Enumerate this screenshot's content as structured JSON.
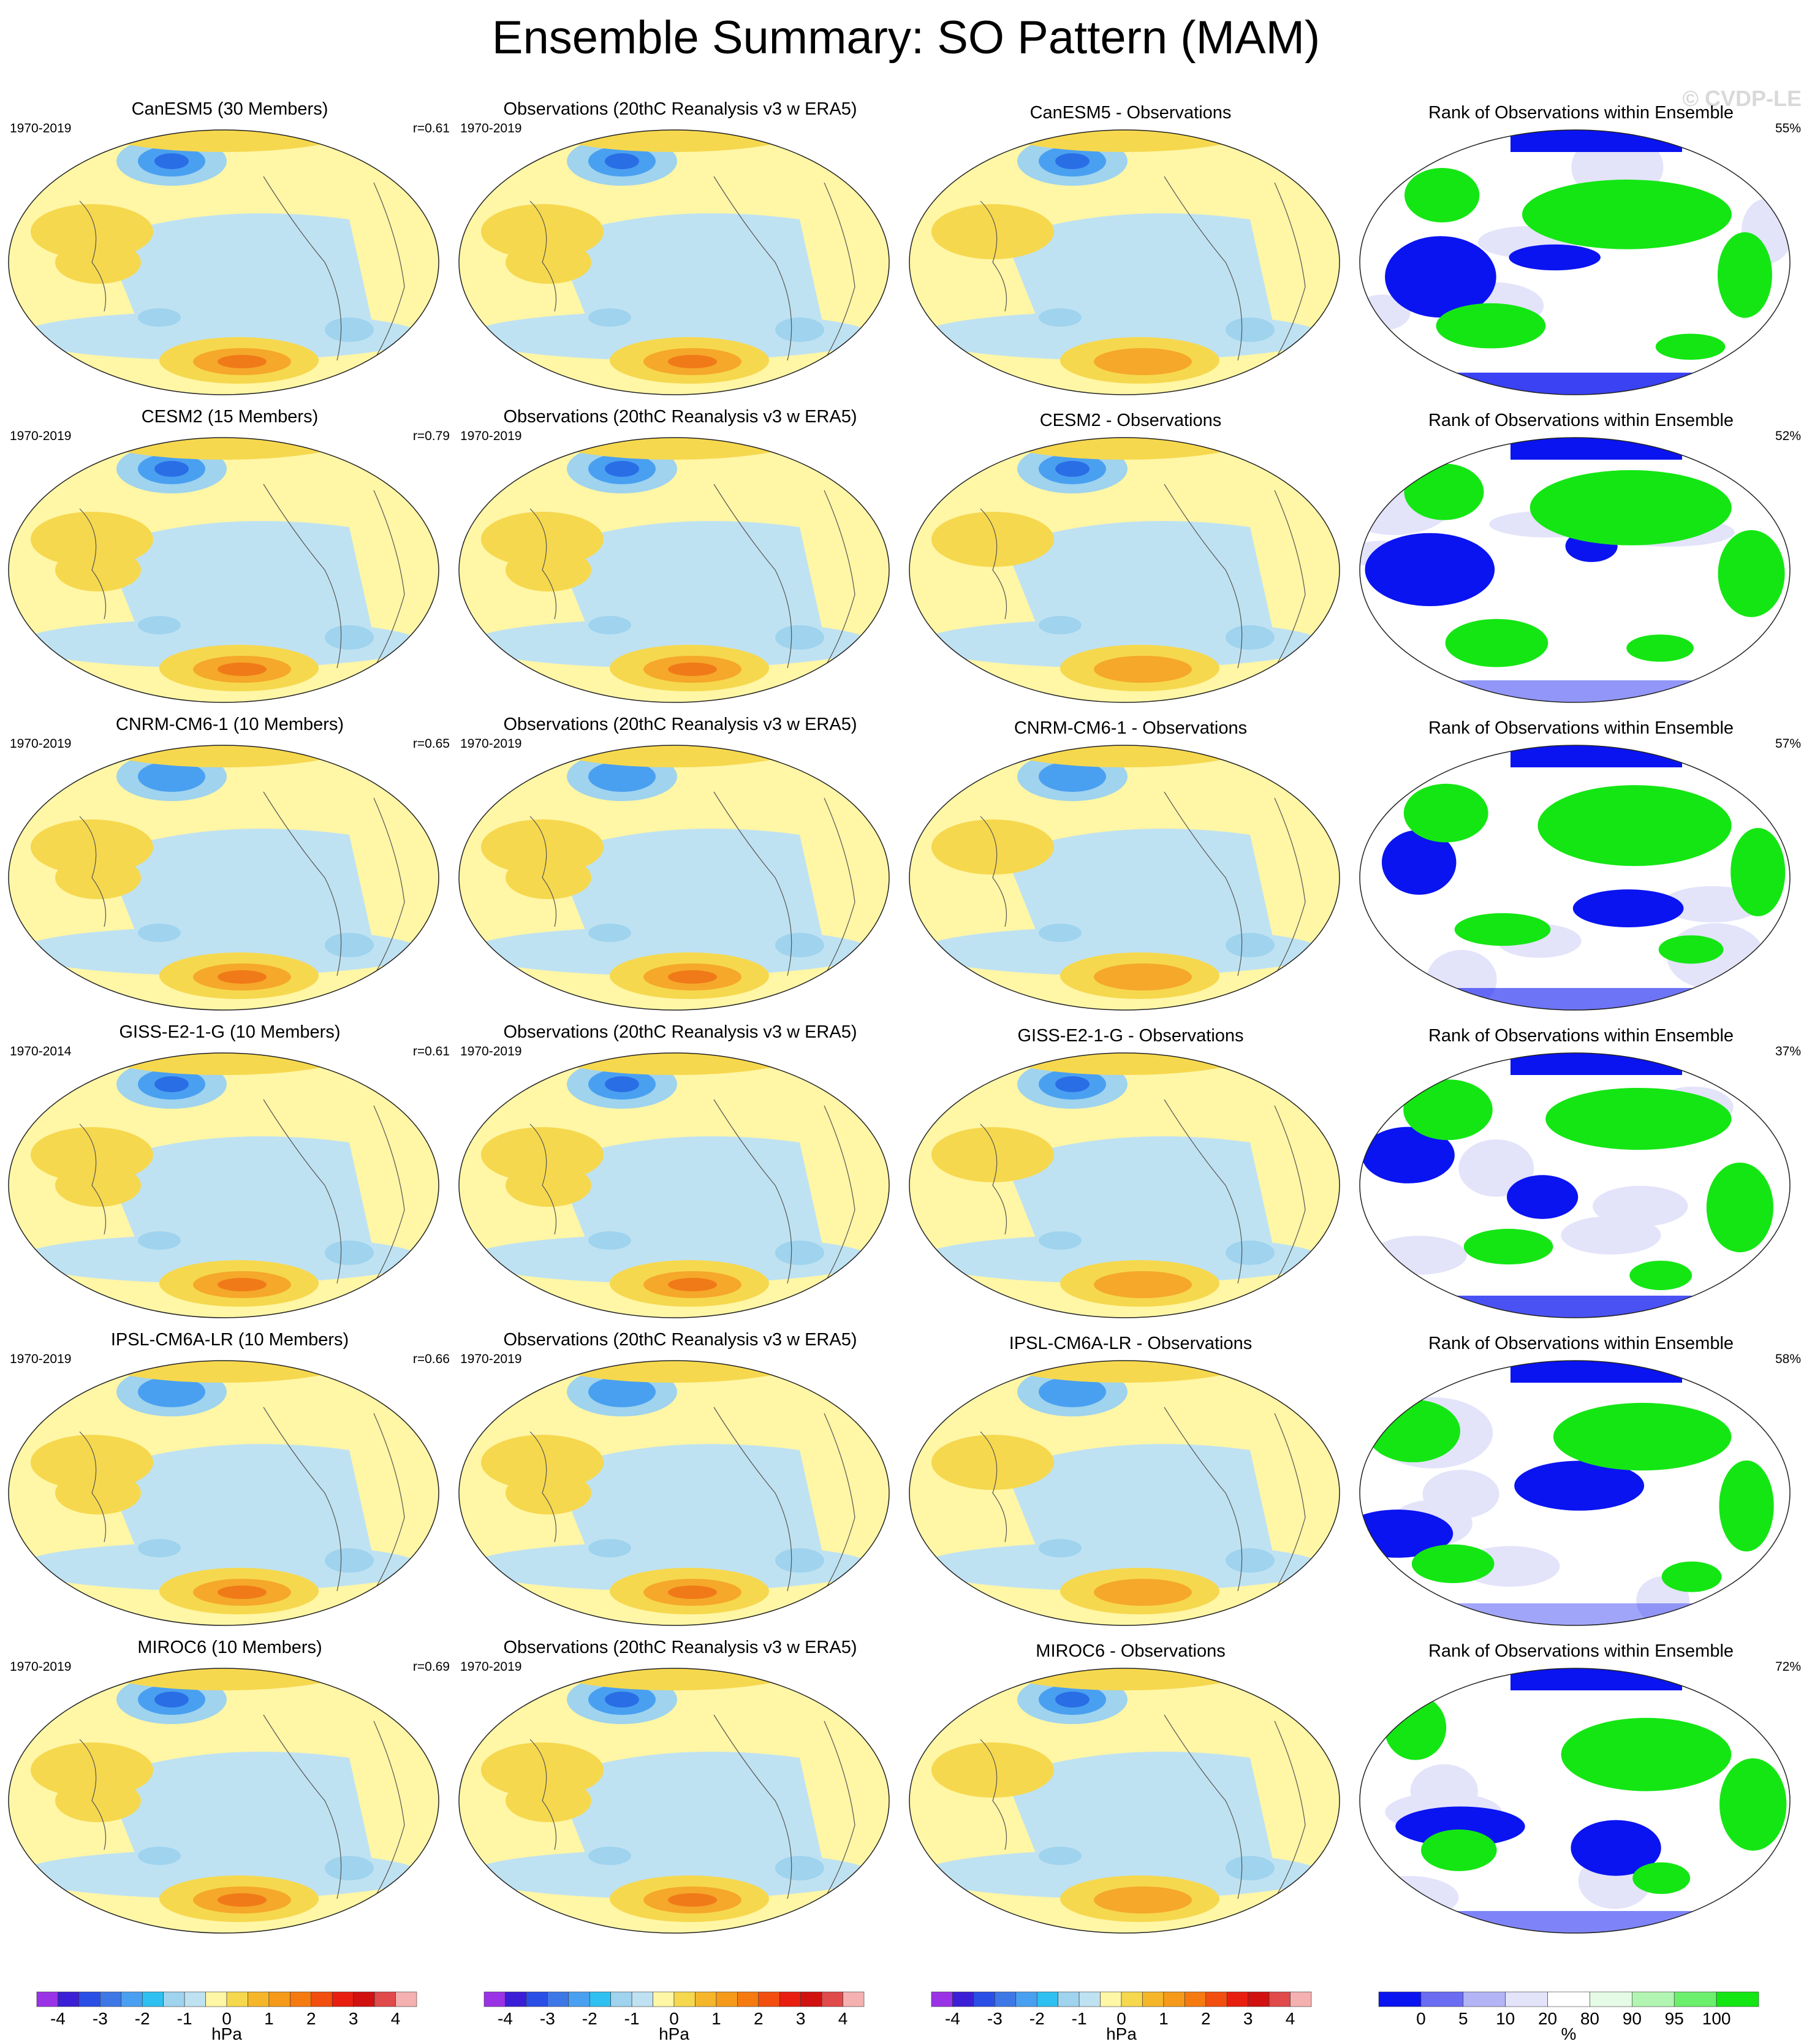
{
  "figure": {
    "title": "Ensemble Summary: SO Pattern (MAM)",
    "watermark": "© CVDP-LE"
  },
  "rows": [
    {
      "model_title": "CanESM5 (30 Members)",
      "model_years": "1970-2019",
      "model_r": "r=0.61",
      "obs_title": "Observations (20thC Reanalysis v3 w ERA5)",
      "obs_years": "1970-2019",
      "diff_title": "CanESM5 - Observations",
      "rank_title": "Rank of Observations within Ensemble",
      "rank_pct": "55%"
    },
    {
      "model_title": "CESM2 (15 Members)",
      "model_years": "1970-2019",
      "model_r": "r=0.79",
      "obs_title": "Observations (20thC Reanalysis v3 w ERA5)",
      "obs_years": "1970-2019",
      "diff_title": "CESM2 - Observations",
      "rank_title": "Rank of Observations within Ensemble",
      "rank_pct": "52%"
    },
    {
      "model_title": "CNRM-CM6-1 (10 Members)",
      "model_years": "1970-2019",
      "model_r": "r=0.65",
      "obs_title": "Observations (20thC Reanalysis v3 w ERA5)",
      "obs_years": "1970-2019",
      "diff_title": "CNRM-CM6-1 - Observations",
      "rank_title": "Rank of Observations within Ensemble",
      "rank_pct": "57%"
    },
    {
      "model_title": "GISS-E2-1-G (10 Members)",
      "model_years": "1970-2014",
      "model_r": "r=0.61",
      "obs_title": "Observations (20thC Reanalysis v3 w ERA5)",
      "obs_years": "1970-2019",
      "diff_title": "GISS-E2-1-G - Observations",
      "rank_title": "Rank of Observations within Ensemble",
      "rank_pct": "37%"
    },
    {
      "model_title": "IPSL-CM6A-LR (10 Members)",
      "model_years": "1970-2019",
      "model_r": "r=0.66",
      "obs_title": "Observations (20thC Reanalysis v3 w ERA5)",
      "obs_years": "1970-2019",
      "diff_title": "IPSL-CM6A-LR - Observations",
      "rank_title": "Rank of Observations within Ensemble",
      "rank_pct": "58%"
    },
    {
      "model_title": "MIROC6 (10 Members)",
      "model_years": "1970-2019",
      "model_r": "r=0.69",
      "obs_title": "Observations (20thC Reanalysis v3 w ERA5)",
      "obs_years": "1970-2019",
      "diff_title": "MIROC6 - Observations",
      "rank_title": "Rank of Observations within Ensemble",
      "rank_pct": "72%"
    }
  ],
  "colorbars": {
    "hpa": {
      "unit": "hPa",
      "ticks": [
        "-4",
        "-3",
        "-2",
        "-1",
        "0",
        "1",
        "2",
        "3",
        "4"
      ],
      "colors": [
        "#9a33e6",
        "#3a1fd6",
        "#2a4fe6",
        "#3e78e6",
        "#4aa0f0",
        "#2ec0f0",
        "#9fd3ee",
        "#bfe2f2",
        "#fff6a6",
        "#f6d84e",
        "#f5b62a",
        "#f59a1a",
        "#f57a10",
        "#f24e10",
        "#e81e10",
        "#d11010",
        "#e04a4a",
        "#f5b0b0"
      ]
    },
    "pct": {
      "unit": "%",
      "ticks": [
        "0",
        "5",
        "10",
        "20",
        "80",
        "90",
        "95",
        "100"
      ],
      "colors": [
        "#0a14f0",
        "#6a6cf2",
        "#b3b4f6",
        "#e3e3fa",
        "#ffffff",
        "#e6fbe6",
        "#b2f5b2",
        "#6cef6c",
        "#14e614"
      ]
    }
  },
  "map_colors": {
    "ocean_pos": "#fff6a6",
    "neg1": "#bfe2f2",
    "neg2": "#9fd3ee",
    "neg3": "#4aa0f0",
    "neg4": "#2a6ee6",
    "pos2": "#f6d84e",
    "pos3": "#f5a82a",
    "pos4": "#f07a18",
    "rank_low": "#0a14f0",
    "rank_mid": "#e3e3fa",
    "rank_high": "#14e614"
  }
}
